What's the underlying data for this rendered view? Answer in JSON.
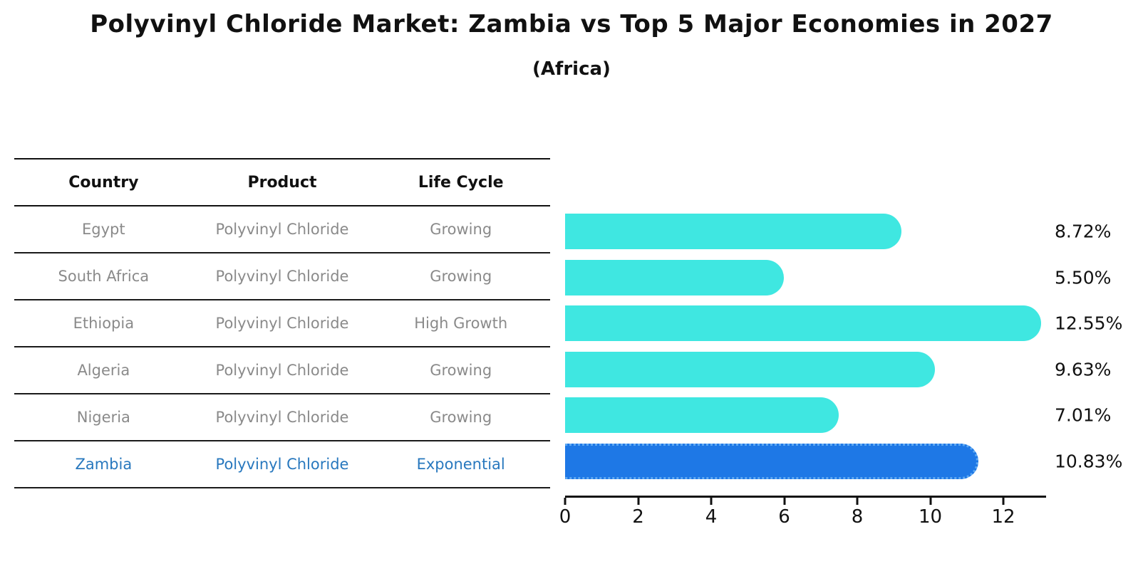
{
  "title": "Polyvinyl Chloride Market: Zambia vs Top 5 Major Economies in 2027",
  "subtitle": "(Africa)",
  "table": {
    "headers": [
      "Country",
      "Product",
      "Life Cycle"
    ],
    "rows": [
      {
        "country": "Egypt",
        "product": "Polyvinyl Chloride",
        "life_cycle": "Growing",
        "highlight": false
      },
      {
        "country": "South Africa",
        "product": "Polyvinyl Chloride",
        "life_cycle": "Growing",
        "highlight": false
      },
      {
        "country": "Ethiopia",
        "product": "Polyvinyl Chloride",
        "life_cycle": "High Growth",
        "highlight": false
      },
      {
        "country": "Algeria",
        "product": "Polyvinyl Chloride",
        "life_cycle": "Growing",
        "highlight": false
      },
      {
        "country": "Nigeria",
        "product": "Polyvinyl Chloride",
        "life_cycle": "Growing",
        "highlight": false
      },
      {
        "country": "Zambia",
        "product": "Polyvinyl Chloride",
        "life_cycle": "Exponential",
        "highlight": true
      }
    ]
  },
  "chart_data": {
    "type": "bar",
    "orientation": "horizontal",
    "title": "Polyvinyl Chloride Market: Zambia vs Top 5 Major Economies in 2027 (Africa)",
    "categories": [
      "Egypt",
      "South Africa",
      "Ethiopia",
      "Algeria",
      "Nigeria",
      "Zambia"
    ],
    "values": [
      8.72,
      5.5,
      12.55,
      9.63,
      7.01,
      10.83
    ],
    "value_labels": [
      "8.72%",
      "5.50%",
      "12.55%",
      "9.63%",
      "7.01%",
      "10.83%"
    ],
    "xlabel": "",
    "ylabel": "",
    "xlim": [
      0,
      13.2
    ],
    "x_ticks": [
      0,
      2,
      4,
      6,
      8,
      10,
      12
    ],
    "grid": false,
    "legend": false,
    "bar_color": "#3fe7e1",
    "highlight_color": "#1e78e6",
    "highlight_index": 5,
    "highlight_category": "Zambia"
  },
  "colors": {
    "background": "#ffffff",
    "text_primary": "#111111",
    "text_muted": "#8a8a8a",
    "highlight_text": "#2878be",
    "bar_cyan": "#3fe7e1",
    "bar_blue": "#1e78e6",
    "bar_blue_dot_border": "#5fa9f2"
  }
}
